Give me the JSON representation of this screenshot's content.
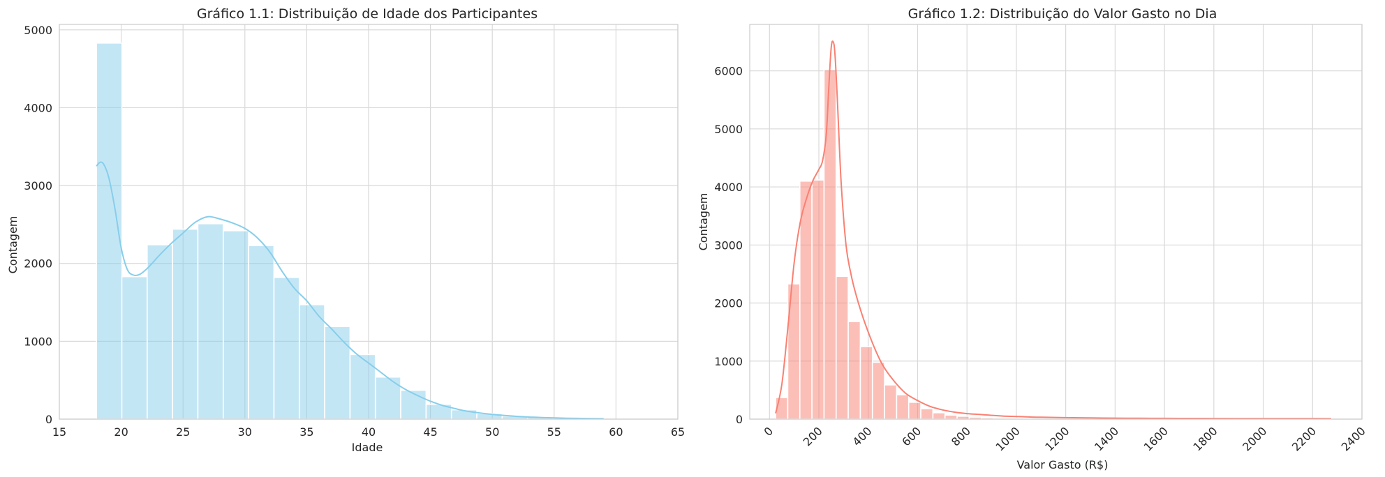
{
  "chart_data": [
    {
      "type": "bar",
      "title": "Gráfico 1.1: Distribuição de Idade dos Participantes",
      "xlabel": "Idade",
      "ylabel": "Contagem",
      "xlim": [
        15,
        65
      ],
      "ylim": [
        0,
        5070
      ],
      "xticks": [
        15,
        20,
        25,
        30,
        35,
        40,
        45,
        50,
        55,
        60,
        65
      ],
      "yticks": [
        0,
        1000,
        2000,
        3000,
        4000,
        5000
      ],
      "grid": true,
      "colors": {
        "bar": "#87ceeb",
        "kde": "#87ceeb"
      },
      "bins": {
        "x_start": [
          18,
          20.05,
          22.1,
          24.15,
          26.2,
          28.25,
          30.3,
          32.35,
          34.4,
          36.45,
          38.5,
          40.55,
          42.6,
          44.65,
          46.7,
          48.75,
          50.8,
          52.85,
          54.9,
          56.95
        ],
        "width": 2.05,
        "values": [
          4830,
          1830,
          2240,
          2440,
          2510,
          2420,
          2230,
          1820,
          1470,
          1190,
          830,
          540,
          370,
          190,
          120,
          70,
          40,
          25,
          15,
          8
        ]
      },
      "kde": {
        "x": [
          18,
          18.3,
          18.6,
          19,
          19.5,
          20,
          20.5,
          21,
          21.5,
          22,
          22.5,
          23,
          24,
          25,
          26,
          27,
          28,
          29,
          30,
          31,
          32,
          33,
          34,
          35,
          36,
          37,
          38,
          39,
          40,
          41,
          42,
          43,
          44,
          45,
          46,
          47,
          48,
          50,
          52,
          54,
          56,
          58,
          59
        ],
        "y": [
          3250,
          3300,
          3270,
          3100,
          2700,
          2200,
          1920,
          1850,
          1860,
          1920,
          2000,
          2090,
          2250,
          2390,
          2530,
          2600,
          2570,
          2520,
          2450,
          2330,
          2150,
          1900,
          1680,
          1520,
          1320,
          1160,
          990,
          840,
          720,
          600,
          480,
          380,
          300,
          230,
          175,
          135,
          100,
          60,
          35,
          20,
          12,
          7,
          5
        ]
      }
    },
    {
      "type": "bar",
      "title": "Gráfico 1.2: Distribuição do Valor Gasto no Dia",
      "xlabel": "Valor Gasto (R$)",
      "ylabel": "Contagem",
      "xlim": [
        -80,
        2400
      ],
      "ylim": [
        0,
        6800
      ],
      "xticks": [
        0,
        200,
        400,
        600,
        800,
        1000,
        1200,
        1400,
        1600,
        1800,
        2000,
        2200,
        2400
      ],
      "yticks": [
        0,
        1000,
        2000,
        3000,
        4000,
        5000,
        6000
      ],
      "grid": true,
      "colors": {
        "bar": "#fa8072",
        "kde": "#fa8072"
      },
      "bins": {
        "x_start": [
          25,
          74,
          123,
          172,
          221,
          270,
          319,
          368,
          417,
          466,
          515,
          564,
          613,
          662,
          711,
          760,
          809,
          858,
          907,
          956,
          1005,
          1054,
          1103,
          1152,
          1201,
          1250,
          1299,
          1348,
          1397,
          1446,
          1495,
          1544,
          1593,
          1642,
          1691,
          1740,
          1789,
          1838,
          1887,
          1936,
          1985,
          2034,
          2083,
          2132,
          2181,
          2230
        ],
        "width": 49,
        "values": [
          370,
          2330,
          4100,
          4120,
          6020,
          2460,
          1680,
          1250,
          980,
          590,
          420,
          290,
          180,
          110,
          70,
          50,
          35,
          25,
          20,
          15,
          12,
          10,
          8,
          7,
          6,
          5,
          5,
          4,
          4,
          4,
          3,
          3,
          3,
          3,
          3,
          3,
          2,
          2,
          2,
          2,
          2,
          2,
          2,
          2,
          2,
          2
        ]
      },
      "kde": {
        "x": [
          25,
          50,
          75,
          100,
          125,
          150,
          175,
          200,
          215,
          230,
          240,
          250,
          258,
          265,
          275,
          290,
          310,
          330,
          350,
          375,
          400,
          430,
          460,
          500,
          550,
          600,
          650,
          700,
          750,
          800,
          850,
          900,
          950,
          1000,
          1100,
          1200,
          1300,
          1400,
          1500,
          1600,
          1700,
          1800,
          1900,
          2000,
          2100,
          2200,
          2275
        ],
        "y": [
          100,
          600,
          1600,
          2700,
          3400,
          3800,
          4100,
          4300,
          4450,
          4900,
          5700,
          6400,
          6500,
          6300,
          5500,
          4100,
          3000,
          2500,
          2150,
          1800,
          1500,
          1180,
          920,
          680,
          450,
          320,
          220,
          160,
          120,
          95,
          80,
          65,
          52,
          45,
          32,
          25,
          20,
          17,
          15,
          13,
          12,
          11,
          10,
          9,
          8,
          8,
          7
        ]
      }
    }
  ]
}
